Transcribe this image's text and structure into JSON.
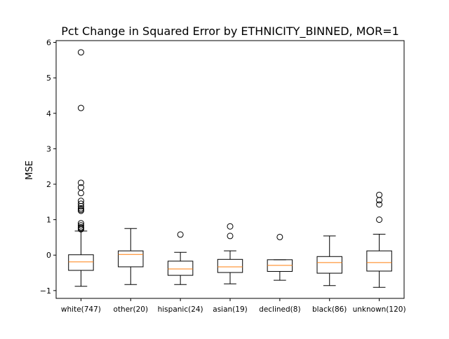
{
  "chart_data": {
    "type": "boxplot",
    "title": "Pct Change in Squared Error by ETHNICITY_BINNED, MOR=1",
    "xlabel": "",
    "ylabel": "MSE",
    "ylim": [
      -1.22,
      6.05
    ],
    "yticks": [
      -1,
      0,
      1,
      2,
      3,
      4,
      5,
      6
    ],
    "grid": false,
    "categories": [
      "white(747)",
      "other(20)",
      "hispanic(24)",
      "asian(19)",
      "declined(8)",
      "black(86)",
      "unknown(120)"
    ],
    "boxes": [
      {
        "category": "white(747)",
        "whisker_low": -0.88,
        "q1": -0.43,
        "median": -0.19,
        "q3": 0.01,
        "whisker_high": 0.68,
        "outliers": [
          5.72,
          4.15,
          2.04,
          1.91,
          1.75,
          1.53,
          1.45,
          1.38,
          1.32,
          1.28,
          1.25,
          0.9,
          0.84,
          0.79,
          0.76,
          0.73
        ]
      },
      {
        "category": "other(20)",
        "whisker_low": -0.83,
        "q1": -0.33,
        "median": 0.02,
        "q3": 0.12,
        "whisker_high": 0.75,
        "outliers": []
      },
      {
        "category": "hispanic(24)",
        "whisker_low": -0.83,
        "q1": -0.57,
        "median": -0.39,
        "q3": -0.17,
        "whisker_high": 0.08,
        "outliers": [
          0.58
        ]
      },
      {
        "category": "asian(19)",
        "whisker_low": -0.81,
        "q1": -0.49,
        "median": -0.33,
        "q3": -0.12,
        "whisker_high": 0.12,
        "outliers": [
          0.81,
          0.54
        ]
      },
      {
        "category": "declined(8)",
        "whisker_low": -0.71,
        "q1": -0.46,
        "median": -0.29,
        "q3": -0.13,
        "whisker_high": -0.13,
        "outliers": [
          0.51
        ]
      },
      {
        "category": "black(86)",
        "whisker_low": -0.86,
        "q1": -0.51,
        "median": -0.21,
        "q3": -0.04,
        "whisker_high": 0.54,
        "outliers": []
      },
      {
        "category": "unknown(120)",
        "whisker_low": -0.91,
        "q1": -0.45,
        "median": -0.21,
        "q3": 0.12,
        "whisker_high": 0.59,
        "outliers": [
          1.7,
          1.55,
          1.43,
          1.0
        ]
      }
    ],
    "colors": {
      "box": "#000000",
      "median": "#ff7f0e",
      "background": "#ffffff"
    }
  }
}
